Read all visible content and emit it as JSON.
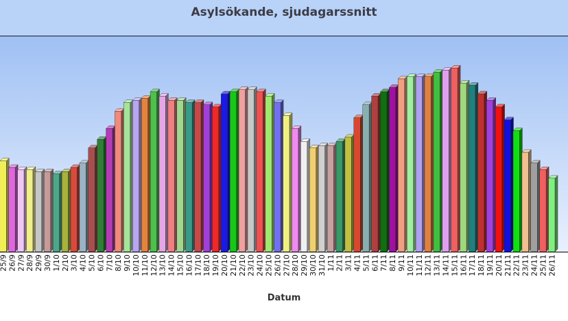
{
  "chart_data": {
    "type": "bar",
    "title": "Asylsökande, sjudagarssnitt",
    "xlabel": "Datum",
    "ylabel": "",
    "ylim": [
      0,
      100
    ],
    "grid": false,
    "legend": "none",
    "colors": {
      "background_top": "#9fc0f4",
      "background_bottom": "#e8f0fd",
      "title_band": "#b9d2f8",
      "axis": "#000000"
    },
    "categories": [
      "25/9",
      "26/9",
      "27/9",
      "28/9",
      "29/9",
      "30/9",
      "1/10",
      "2/10",
      "3/10",
      "4/10",
      "5/10",
      "6/10",
      "7/10",
      "8/10",
      "9/10",
      "10/10",
      "11/10",
      "12/10",
      "13/10",
      "14/10",
      "15/10",
      "16/10",
      "17/10",
      "18/10",
      "19/10",
      "20/10",
      "21/10",
      "22/10",
      "23/10",
      "24/10",
      "25/10",
      "26/10",
      "27/10",
      "28/10",
      "29/10",
      "30/10",
      "31/10",
      "1/11",
      "2/11",
      "3/11",
      "4/11",
      "5/11",
      "6/11",
      "7/11",
      "8/11",
      "9/11",
      "10/11",
      "11/11",
      "12/11",
      "13/11",
      "14/11",
      "15/11",
      "16/11",
      "17/11",
      "18/11",
      "19/11",
      "20/11",
      "21/11",
      "22/11",
      "23/11",
      "24/11",
      "25/11",
      "26/11"
    ],
    "values": [
      42,
      39,
      38,
      38,
      37,
      37,
      36,
      37,
      39,
      41,
      48,
      52,
      57,
      65,
      69,
      70,
      71,
      74,
      72,
      70,
      70,
      69,
      69,
      68,
      67,
      73,
      74,
      75,
      75,
      74,
      72,
      69,
      63,
      57,
      51,
      48,
      49,
      49,
      51,
      53,
      62,
      68,
      72,
      74,
      76,
      80,
      81,
      81,
      81,
      83,
      84,
      85,
      78,
      77,
      73,
      70,
      67,
      61,
      56,
      46,
      41,
      38,
      34
    ],
    "bar_colors": [
      "#f1ef57",
      "#e067df",
      "#efc7f5",
      "#f1ef8a",
      "#c6c6c6",
      "#c79a9a",
      "#4ca88b",
      "#a8b23c",
      "#d94a3c",
      "#9cb3c3",
      "#a94e4e",
      "#2f7f35",
      "#b43cb4",
      "#f08a7a",
      "#a6e49a",
      "#b9a6f0",
      "#e4843c",
      "#4cc24c",
      "#e6a6e6",
      "#f08080",
      "#a0d890",
      "#3a9a8a",
      "#c84848",
      "#a040d8",
      "#f02828",
      "#1a1ae6",
      "#18c818",
      "#f0a0a0",
      "#c8c8c8",
      "#f05050",
      "#a0e870",
      "#7070f0",
      "#f0f080",
      "#f08af0",
      "#f0f0f0",
      "#f0d070",
      "#d0d0d0",
      "#c8a0a0",
      "#389868",
      "#c0c040",
      "#d84830",
      "#88b0b0",
      "#b04040",
      "#107010",
      "#a010a0",
      "#f0a080",
      "#a0f0a0",
      "#b0a0f0",
      "#e08040",
      "#40c040",
      "#e0a0f0",
      "#f06060",
      "#a0d880",
      "#208080",
      "#c03030",
      "#a040e0",
      "#f01010",
      "#1010e0",
      "#10e010",
      "#f0c090",
      "#a0a0a0",
      "#f06060",
      "#80f080"
    ]
  }
}
